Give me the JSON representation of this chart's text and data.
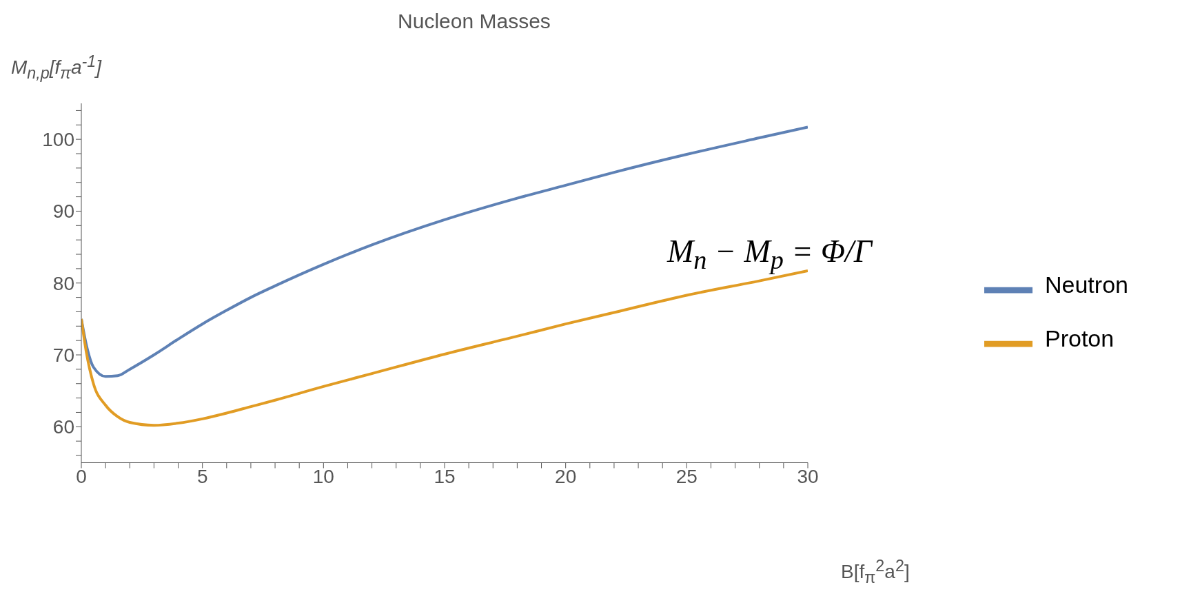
{
  "chart_data": {
    "type": "line",
    "title": "Nucleon Masses",
    "xlabel": "B[f$_{π}$$^{2}$a$^{2}$]",
    "ylabel": "M$_{n,p}$[f$_{π}$a$^{-1}$]",
    "annotations": [
      "M$_{n}$ − M$_{p}$ = Φ/Γ"
    ],
    "x": [
      0,
      0.2,
      0.5,
      1,
      1.5,
      2,
      3,
      4,
      5,
      6,
      7,
      8,
      10,
      12,
      15,
      18,
      20,
      22,
      25,
      28,
      30
    ],
    "series": [
      {
        "name": "Neutron",
        "color": "#5e81b5",
        "values": [
          75,
          71.5,
          68.3,
          67,
          67.1,
          68,
          70,
          72.2,
          74.3,
          76.2,
          78,
          79.6,
          82.6,
          85.3,
          88.8,
          91.8,
          93.6,
          95.4,
          97.9,
          100.2,
          101.7
        ]
      },
      {
        "name": "Proton",
        "color": "#e19c24",
        "values": [
          75,
          70.5,
          66,
          63,
          61.4,
          60.6,
          60.2,
          60.5,
          61.1,
          61.9,
          62.8,
          63.7,
          65.6,
          67.4,
          70.1,
          72.6,
          74.3,
          75.9,
          78.3,
          80.3,
          81.7
        ]
      }
    ],
    "xlim": [
      0,
      30
    ],
    "ylim": [
      55,
      105
    ],
    "xticks": [
      0,
      {
        "value": 1,
        "label": null
      },
      {
        "value": 2,
        "label": null
      },
      {
        "value": 3,
        "label": null
      },
      {
        "value": 4,
        "label": null
      },
      5,
      {
        "value": 6,
        "label": null
      },
      {
        "value": 7,
        "label": null
      },
      {
        "value": 8,
        "label": null
      },
      {
        "value": 9,
        "label": null
      },
      10,
      {
        "value": 11,
        "label": null
      },
      {
        "value": 12,
        "label": null
      },
      {
        "value": 13,
        "label": null
      },
      {
        "value": 14,
        "label": null
      },
      15,
      {
        "value": 16,
        "label": null
      },
      {
        "value": 17,
        "label": null
      },
      {
        "value": 18,
        "label": null
      },
      {
        "value": 19,
        "label": null
      },
      20,
      {
        "value": 21,
        "label": null
      },
      {
        "value": 22,
        "label": null
      },
      {
        "value": 23,
        "label": null
      },
      {
        "value": 24,
        "label": null
      },
      25,
      {
        "value": 26,
        "label": null
      },
      {
        "value": 27,
        "label": null
      },
      {
        "value": 28,
        "label": null
      },
      {
        "value": 29,
        "label": null
      },
      30
    ],
    "yticks": [
      {
        "value": 56,
        "label": null
      },
      {
        "value": 58,
        "label": null
      },
      60,
      {
        "value": 62,
        "label": null
      },
      {
        "value": 64,
        "label": null
      },
      {
        "value": 66,
        "label": null
      },
      {
        "value": 68,
        "label": null
      },
      70,
      {
        "value": 72,
        "label": null
      },
      {
        "value": 74,
        "label": null
      },
      {
        "value": 76,
        "label": null
      },
      {
        "value": 78,
        "label": null
      },
      80,
      {
        "value": 82,
        "label": null
      },
      {
        "value": 84,
        "label": null
      },
      {
        "value": 86,
        "label": null
      },
      {
        "value": 88,
        "label": null
      },
      90,
      {
        "value": 92,
        "label": null
      },
      {
        "value": 94,
        "label": null
      },
      {
        "value": 96,
        "label": null
      },
      {
        "value": 98,
        "label": null
      },
      100,
      {
        "value": 102,
        "label": null
      },
      {
        "value": 104,
        "label": null
      }
    ],
    "grid": false,
    "legend": "right",
    "marker": "none",
    "line_style": "solid"
  }
}
